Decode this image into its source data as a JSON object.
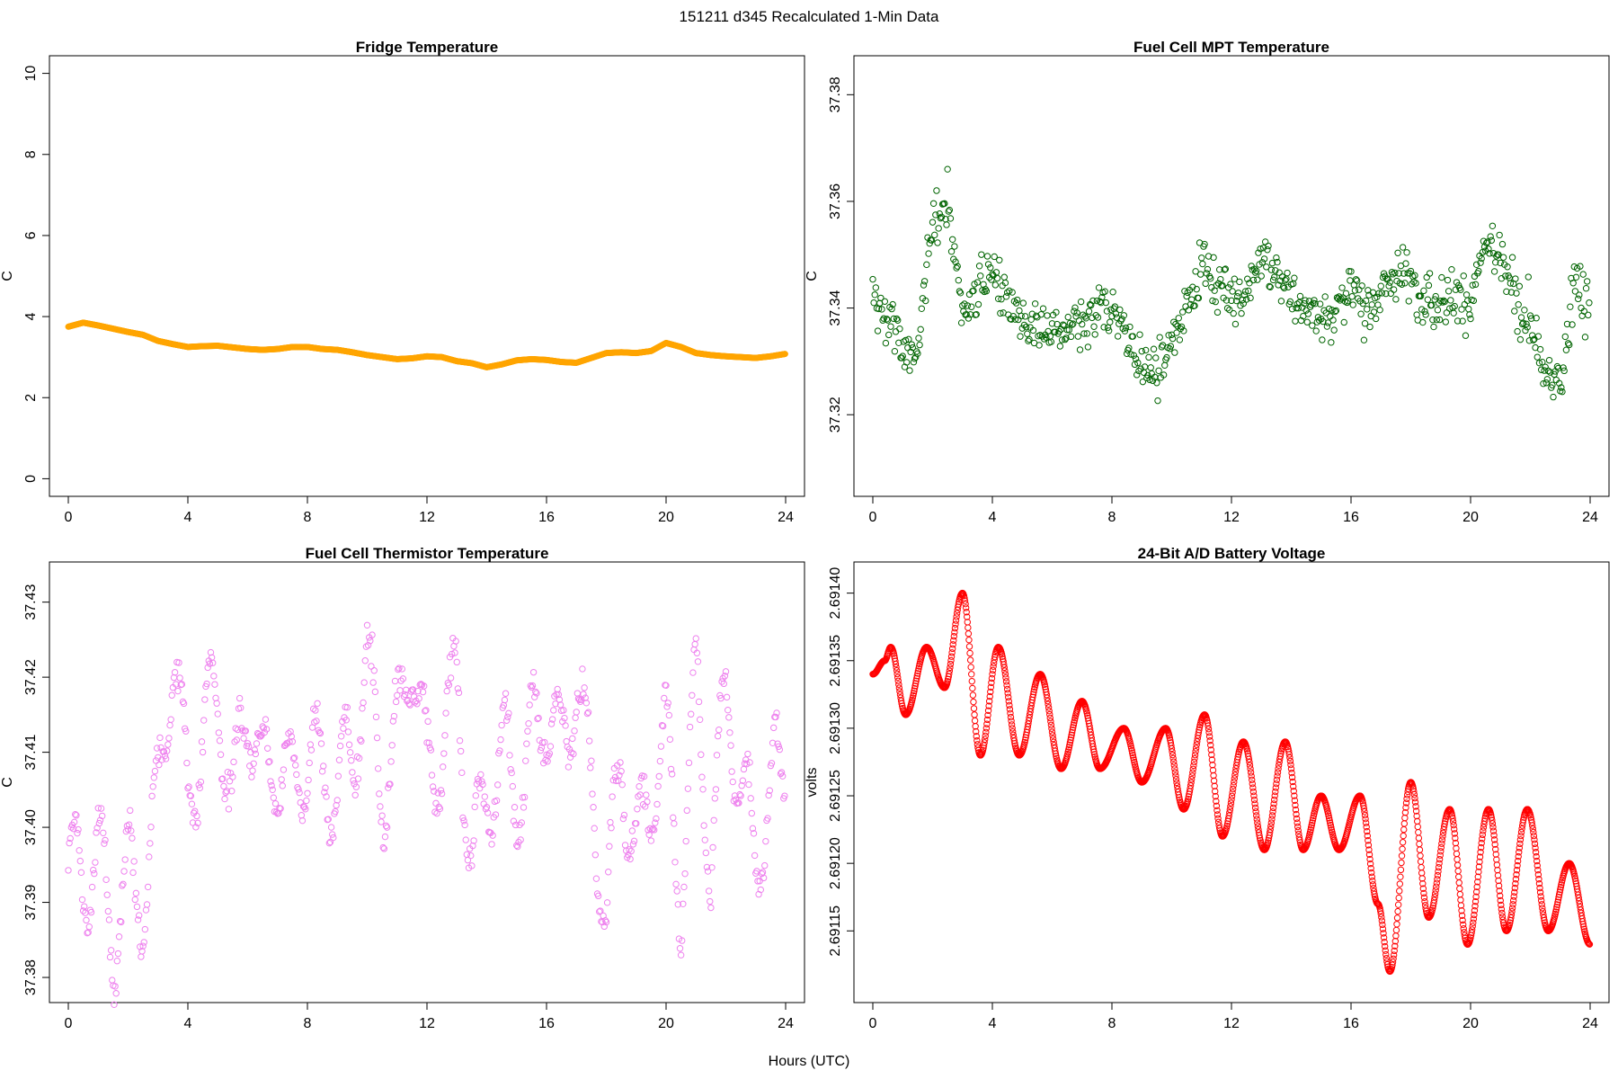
{
  "figure": {
    "suptitle": "151211   d345   Recalculated 1-Min Data",
    "shared_xlabel": "Hours (UTC)"
  },
  "chart_data": [
    {
      "type": "scatter",
      "title": "Fridge Temperature",
      "ylabel": "C",
      "xlabel": "",
      "xlim": [
        0,
        24
      ],
      "ylim": [
        0,
        10
      ],
      "x_ticks": [
        "0",
        "4",
        "8",
        "12",
        "16",
        "20",
        "24"
      ],
      "y_ticks": [
        "0",
        "2",
        "4",
        "6",
        "8",
        "10"
      ],
      "color": "#ffa500",
      "marker": "filled-circle",
      "series": [
        {
          "name": "Fridge Temperature",
          "x": [
            0,
            0.5,
            1,
            1.5,
            2,
            2.5,
            3,
            3.5,
            4,
            4.5,
            5,
            5.5,
            6,
            6.5,
            7,
            7.5,
            8,
            8.5,
            9,
            9.5,
            10,
            10.5,
            11,
            11.5,
            12,
            12.5,
            13,
            13.5,
            14,
            14.5,
            15,
            15.5,
            16,
            16.5,
            17,
            17.5,
            18,
            18.5,
            19,
            19.5,
            20,
            20.5,
            21,
            21.5,
            22,
            22.5,
            23,
            23.5,
            24
          ],
          "values": [
            3.75,
            3.85,
            3.78,
            3.7,
            3.62,
            3.55,
            3.4,
            3.32,
            3.25,
            3.27,
            3.28,
            3.24,
            3.2,
            3.18,
            3.2,
            3.25,
            3.25,
            3.2,
            3.18,
            3.12,
            3.05,
            3.0,
            2.95,
            2.97,
            3.02,
            3.0,
            2.9,
            2.85,
            2.75,
            2.82,
            2.92,
            2.95,
            2.93,
            2.88,
            2.86,
            2.98,
            3.1,
            3.12,
            3.1,
            3.15,
            3.35,
            3.25,
            3.1,
            3.05,
            3.02,
            3.0,
            2.98,
            3.02,
            3.08
          ]
        }
      ]
    },
    {
      "type": "scatter",
      "title": "Fuel Cell MPT Temperature",
      "ylabel": "C",
      "xlabel": "",
      "xlim": [
        0,
        24
      ],
      "ylim": [
        37.308,
        37.384
      ],
      "x_ticks": [
        "0",
        "4",
        "8",
        "12",
        "16",
        "20",
        "24"
      ],
      "y_ticks": [
        "37.32",
        "37.34",
        "37.36",
        "37.38"
      ],
      "color": "#006400",
      "marker": "open-circle",
      "series": [
        {
          "name": "Fuel Cell MPT Temperature",
          "x": [
            0,
            0.5,
            1,
            1.5,
            2,
            2.5,
            3,
            3.5,
            4,
            4.5,
            5,
            5.5,
            6,
            6.5,
            7,
            7.5,
            8,
            8.5,
            9,
            9.5,
            10,
            10.5,
            11,
            11.5,
            12,
            12.5,
            13,
            13.5,
            14,
            14.5,
            15,
            15.5,
            16,
            16.5,
            17,
            17.5,
            18,
            18.5,
            19,
            19.5,
            20,
            20.5,
            21,
            21.5,
            22,
            22.5,
            23,
            23.5,
            24
          ],
          "values": [
            37.342,
            37.338,
            37.333,
            37.33,
            37.357,
            37.359,
            37.339,
            37.344,
            37.347,
            37.342,
            37.337,
            37.336,
            37.336,
            37.336,
            37.336,
            37.339,
            37.34,
            37.334,
            37.329,
            37.327,
            37.332,
            37.342,
            37.348,
            37.344,
            37.343,
            37.341,
            37.349,
            37.347,
            37.343,
            37.339,
            37.338,
            37.34,
            37.343,
            37.339,
            37.343,
            37.346,
            37.347,
            37.342,
            37.341,
            37.343,
            37.341,
            37.352,
            37.349,
            37.343,
            37.337,
            37.327,
            37.325,
            37.347,
            37.337
          ],
          "spread": 0.006
        }
      ]
    },
    {
      "type": "scatter",
      "title": "Fuel Cell Thermistor Temperature",
      "ylabel": "C",
      "xlabel": "",
      "xlim": [
        0,
        24
      ],
      "ylim": [
        37.379,
        37.433
      ],
      "x_ticks": [
        "0",
        "4",
        "8",
        "12",
        "16",
        "20",
        "24"
      ],
      "y_ticks": [
        "37.38",
        "37.39",
        "37.40",
        "37.41",
        "37.42",
        "37.43"
      ],
      "color": "#ee82ee",
      "marker": "open-circle",
      "series": [
        {
          "name": "Fuel Cell Thermistor Temperature",
          "x": [
            0,
            0.5,
            1,
            1.5,
            2,
            2.5,
            3,
            3.5,
            4,
            4.5,
            5,
            5.5,
            6,
            6.5,
            7,
            7.5,
            8,
            8.5,
            9,
            9.5,
            10,
            10.5,
            11,
            11.5,
            12,
            12.5,
            13,
            13.5,
            14,
            14.5,
            15,
            15.5,
            16,
            16.5,
            17,
            17.5,
            18,
            18.5,
            19,
            19.5,
            20,
            20.5,
            21,
            21.5,
            22,
            22.5,
            23,
            23.5,
            24
          ],
          "values": [
            37.396,
            37.392,
            37.397,
            37.385,
            37.394,
            37.39,
            37.404,
            37.424,
            37.404,
            37.412,
            37.418,
            37.403,
            37.418,
            37.406,
            37.41,
            37.405,
            37.41,
            37.407,
            37.405,
            37.41,
            37.422,
            37.405,
            37.412,
            37.425,
            37.407,
            37.41,
            37.42,
            37.395,
            37.405,
            37.41,
            37.404,
            37.412,
            37.416,
            37.41,
            37.42,
            37.405,
            37.388,
            37.41,
            37.396,
            37.405,
            37.412,
            37.39,
            37.42,
            37.395,
            37.419,
            37.405,
            37.397,
            37.405,
            37.41
          ],
          "spread": 0.004
        }
      ]
    },
    {
      "type": "scatter",
      "title": "24-Bit A/D Battery Voltage",
      "ylabel": "volts",
      "xlabel": "",
      "xlim": [
        0,
        24
      ],
      "ylim": [
        2.69111,
        2.69141
      ],
      "x_ticks": [
        "0",
        "4",
        "8",
        "12",
        "16",
        "20",
        "24"
      ],
      "y_ticks": [
        "2.69115",
        "2.69120",
        "2.69125",
        "2.69130",
        "2.69135",
        "2.69140"
      ],
      "color": "#ff0000",
      "marker": "open-circle",
      "series": [
        {
          "name": "24-Bit A/D Battery Voltage",
          "x": [
            0,
            0.4,
            0.6,
            1.1,
            1.8,
            2.4,
            3.0,
            3.6,
            4.2,
            4.9,
            5.6,
            6.3,
            7.0,
            7.6,
            8.4,
            9.0,
            9.8,
            10.4,
            11.1,
            11.7,
            12.4,
            13.1,
            13.8,
            14.4,
            15.0,
            15.6,
            16.3,
            16.9,
            17.3,
            18.0,
            18.6,
            19.3,
            19.9,
            20.6,
            21.2,
            21.9,
            22.6,
            23.3,
            24.0
          ],
          "values": [
            2.69134,
            2.69135,
            2.69136,
            2.69131,
            2.69136,
            2.69133,
            2.6914,
            2.69128,
            2.69136,
            2.69128,
            2.69134,
            2.69127,
            2.69132,
            2.69127,
            2.6913,
            2.69126,
            2.6913,
            2.69124,
            2.69131,
            2.69122,
            2.69129,
            2.69121,
            2.69129,
            2.69121,
            2.69125,
            2.69121,
            2.69125,
            2.69117,
            2.69112,
            2.69126,
            2.69116,
            2.69124,
            2.69114,
            2.69124,
            2.69115,
            2.69124,
            2.69115,
            2.6912,
            2.69114
          ]
        }
      ]
    }
  ]
}
